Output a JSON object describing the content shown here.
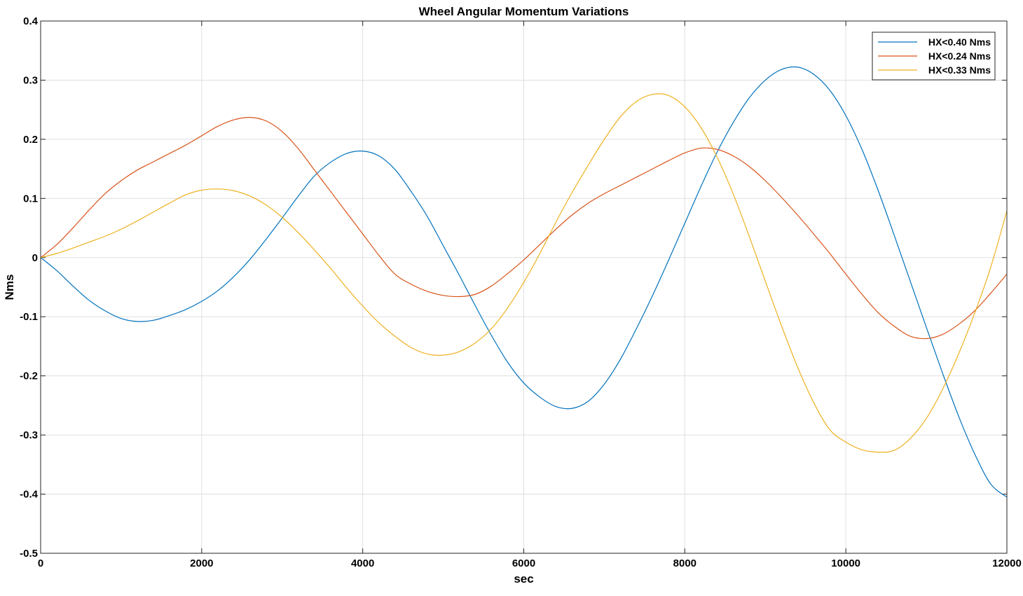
{
  "chart_data": {
    "type": "line",
    "title": "Wheel Angular Momentum Variations",
    "xlabel": "sec",
    "ylabel": "Nms",
    "xlim": [
      0,
      12000
    ],
    "ylim": [
      -0.5,
      0.4
    ],
    "xticks": [
      0,
      2000,
      4000,
      6000,
      8000,
      10000,
      12000
    ],
    "yticks": [
      0.4,
      0.3,
      0.2,
      0.1,
      0,
      -0.1,
      -0.2,
      -0.3,
      -0.4,
      -0.5
    ],
    "xtick_labels": [
      "0",
      "2000",
      "4000",
      "6000",
      "8000",
      "10000",
      "12000"
    ],
    "ytick_labels": [
      "0.4",
      "0.3",
      "0.2",
      "0.1",
      "0",
      "-0.1",
      "-0.2",
      "-0.3",
      "-0.4",
      "-0.5"
    ],
    "grid": true,
    "legend_position": "top-right",
    "series": [
      {
        "name": "HX<0.40 Nms",
        "color": "#0072BD",
        "x": [
          0,
          200,
          400,
          600,
          800,
          1000,
          1200,
          1400,
          1600,
          1800,
          2000,
          2200,
          2400,
          2600,
          2800,
          3000,
          3200,
          3400,
          3600,
          3800,
          4000,
          4200,
          4400,
          4600,
          4800,
          5000,
          5200,
          5400,
          5600,
          5800,
          6000,
          6200,
          6400,
          6600,
          6800,
          7000,
          7200,
          7400,
          7600,
          7800,
          8000,
          8200,
          8400,
          8600,
          8800,
          9000,
          9200,
          9400,
          9600,
          9800,
          10000,
          10200,
          10400,
          10600,
          10800,
          11000,
          11200,
          11400,
          11600,
          11800,
          12000
        ],
        "y": [
          0,
          -0.022,
          -0.048,
          -0.072,
          -0.09,
          -0.103,
          -0.108,
          -0.106,
          -0.098,
          -0.088,
          -0.074,
          -0.056,
          -0.032,
          -0.003,
          0.031,
          0.067,
          0.104,
          0.138,
          0.161,
          0.176,
          0.18,
          0.172,
          0.149,
          0.112,
          0.07,
          0.02,
          -0.03,
          -0.082,
          -0.132,
          -0.177,
          -0.212,
          -0.236,
          -0.252,
          -0.255,
          -0.243,
          -0.214,
          -0.172,
          -0.12,
          -0.064,
          -0.004,
          0.058,
          0.12,
          0.178,
          0.228,
          0.27,
          0.3,
          0.318,
          0.322,
          0.31,
          0.283,
          0.24,
          0.183,
          0.114,
          0.038,
          -0.04,
          -0.118,
          -0.195,
          -0.268,
          -0.332,
          -0.383,
          -0.405
        ]
      },
      {
        "name": "HX<0.24 Nms",
        "color": "#D95319",
        "x": [
          0,
          200,
          400,
          600,
          800,
          1000,
          1200,
          1400,
          1600,
          1800,
          2000,
          2200,
          2400,
          2600,
          2800,
          3000,
          3200,
          3400,
          3600,
          3800,
          4000,
          4200,
          4400,
          4600,
          4800,
          5000,
          5200,
          5400,
          5600,
          5800,
          6000,
          6200,
          6400,
          6600,
          6800,
          7000,
          7200,
          7400,
          7600,
          7800,
          8000,
          8200,
          8400,
          8600,
          8800,
          9000,
          9200,
          9400,
          9600,
          9800,
          10000,
          10200,
          10400,
          10600,
          10800,
          11000,
          11200,
          11400,
          11600,
          11800,
          12000
        ],
        "y": [
          0,
          0.022,
          0.05,
          0.08,
          0.108,
          0.13,
          0.148,
          0.162,
          0.176,
          0.19,
          0.206,
          0.222,
          0.233,
          0.237,
          0.231,
          0.213,
          0.184,
          0.148,
          0.112,
          0.076,
          0.04,
          0.004,
          -0.028,
          -0.045,
          -0.057,
          -0.064,
          -0.066,
          -0.062,
          -0.048,
          -0.027,
          -0.004,
          0.022,
          0.048,
          0.072,
          0.092,
          0.108,
          0.122,
          0.136,
          0.15,
          0.164,
          0.177,
          0.185,
          0.183,
          0.172,
          0.154,
          0.13,
          0.102,
          0.072,
          0.04,
          0.007,
          -0.028,
          -0.062,
          -0.093,
          -0.116,
          -0.133,
          -0.137,
          -0.13,
          -0.113,
          -0.09,
          -0.06,
          -0.028
        ]
      },
      {
        "name": "HX<0.33 Nms",
        "color": "#EDB120",
        "x": [
          0,
          200,
          400,
          600,
          800,
          1000,
          1200,
          1400,
          1600,
          1800,
          2000,
          2200,
          2400,
          2600,
          2800,
          3000,
          3200,
          3400,
          3600,
          3800,
          4000,
          4200,
          4400,
          4600,
          4800,
          5000,
          5200,
          5400,
          5600,
          5800,
          6000,
          6200,
          6400,
          6600,
          6800,
          7000,
          7200,
          7400,
          7600,
          7800,
          8000,
          8200,
          8400,
          8600,
          8800,
          9000,
          9200,
          9400,
          9600,
          9800,
          10000,
          10200,
          10400,
          10600,
          10800,
          11000,
          11200,
          11400,
          11600,
          11800,
          12000
        ],
        "y": [
          0,
          0.007,
          0.016,
          0.026,
          0.036,
          0.048,
          0.062,
          0.077,
          0.092,
          0.106,
          0.114,
          0.116,
          0.113,
          0.104,
          0.089,
          0.068,
          0.042,
          0.013,
          -0.018,
          -0.051,
          -0.082,
          -0.11,
          -0.133,
          -0.152,
          -0.163,
          -0.165,
          -0.159,
          -0.144,
          -0.12,
          -0.085,
          -0.042,
          0.007,
          0.06,
          0.11,
          0.156,
          0.2,
          0.238,
          0.264,
          0.276,
          0.274,
          0.255,
          0.22,
          0.17,
          0.108,
          0.036,
          -0.04,
          -0.115,
          -0.185,
          -0.245,
          -0.291,
          -0.312,
          -0.325,
          -0.329,
          -0.326,
          -0.306,
          -0.272,
          -0.223,
          -0.163,
          -0.094,
          -0.016,
          0.079
        ]
      }
    ]
  }
}
